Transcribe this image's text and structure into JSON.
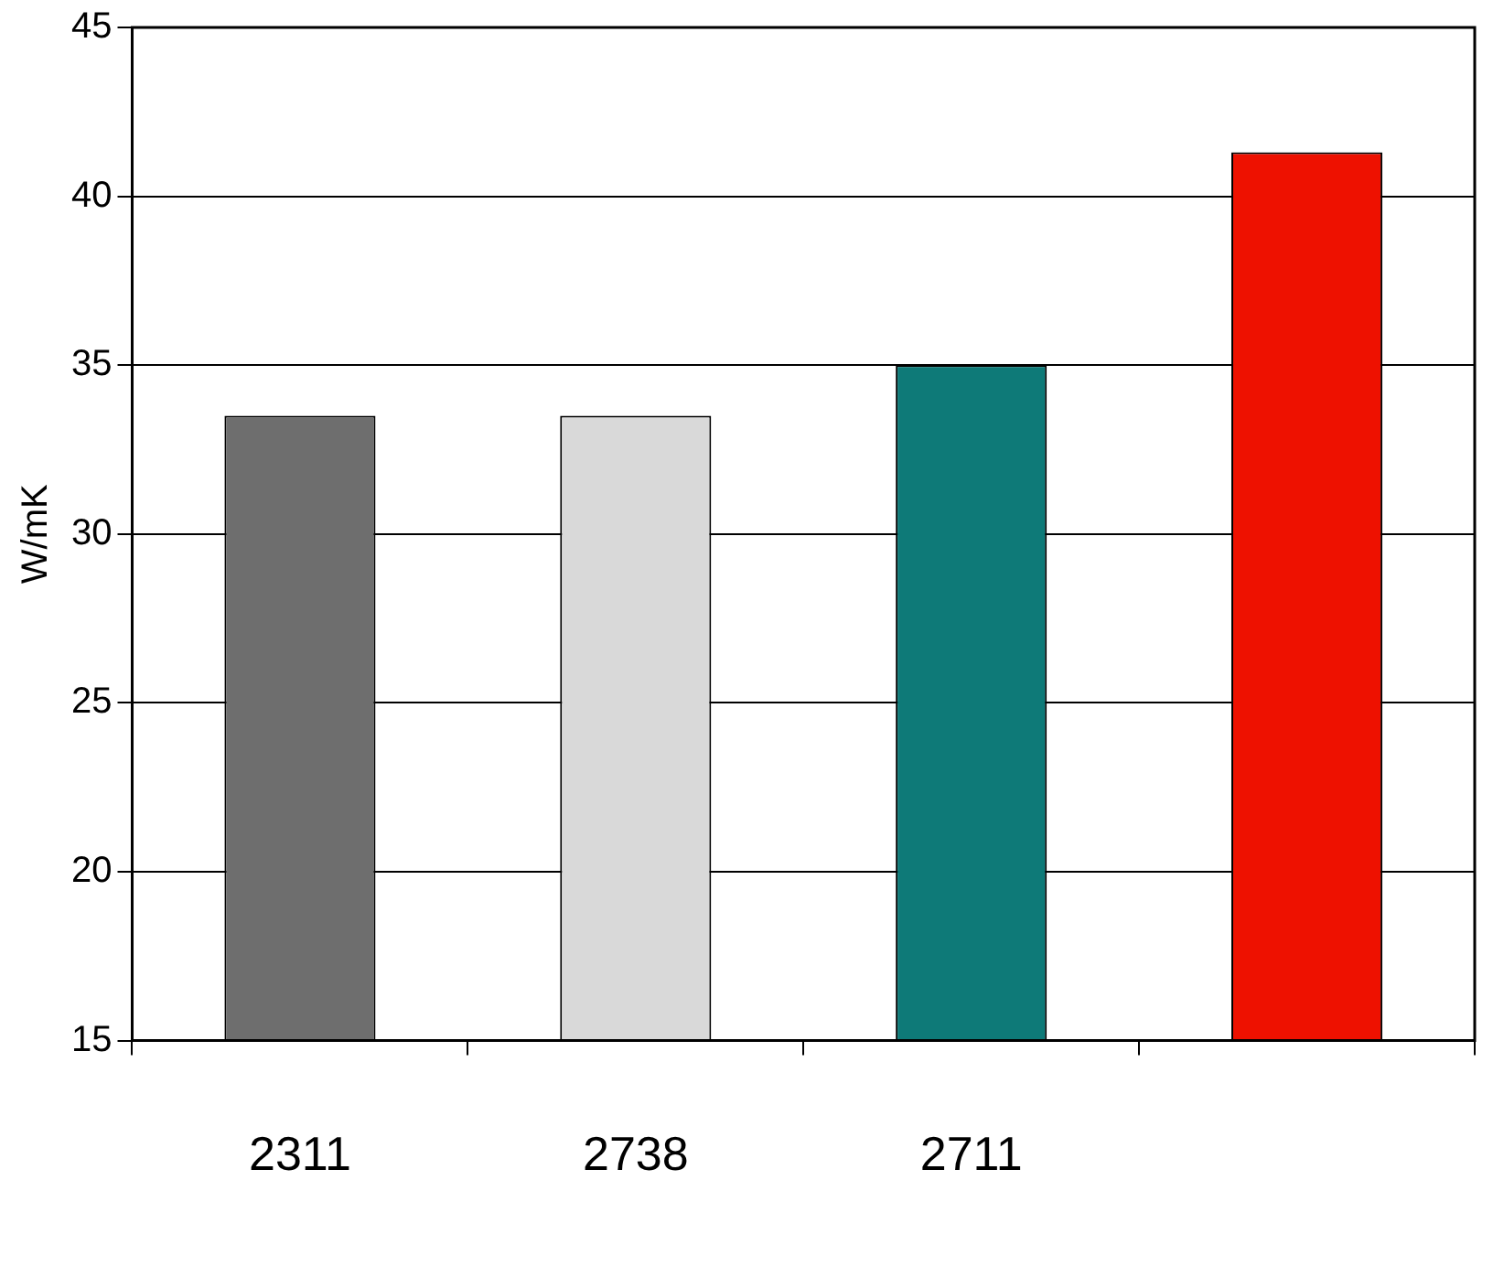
{
  "chart_data": {
    "type": "bar",
    "ylabel": "W/mK",
    "categories": [
      "2311",
      "2738",
      "2711",
      null
    ],
    "values": [
      33.5,
      33.5,
      35,
      41.3
    ],
    "colors": [
      "#6e6e6e",
      "#d9d9d9",
      "#0e7a78",
      "#ee1100"
    ],
    "ylim": [
      15,
      45
    ],
    "yticks": [
      15,
      20,
      25,
      30,
      35,
      40,
      45
    ],
    "grid": "y",
    "legend": false
  }
}
